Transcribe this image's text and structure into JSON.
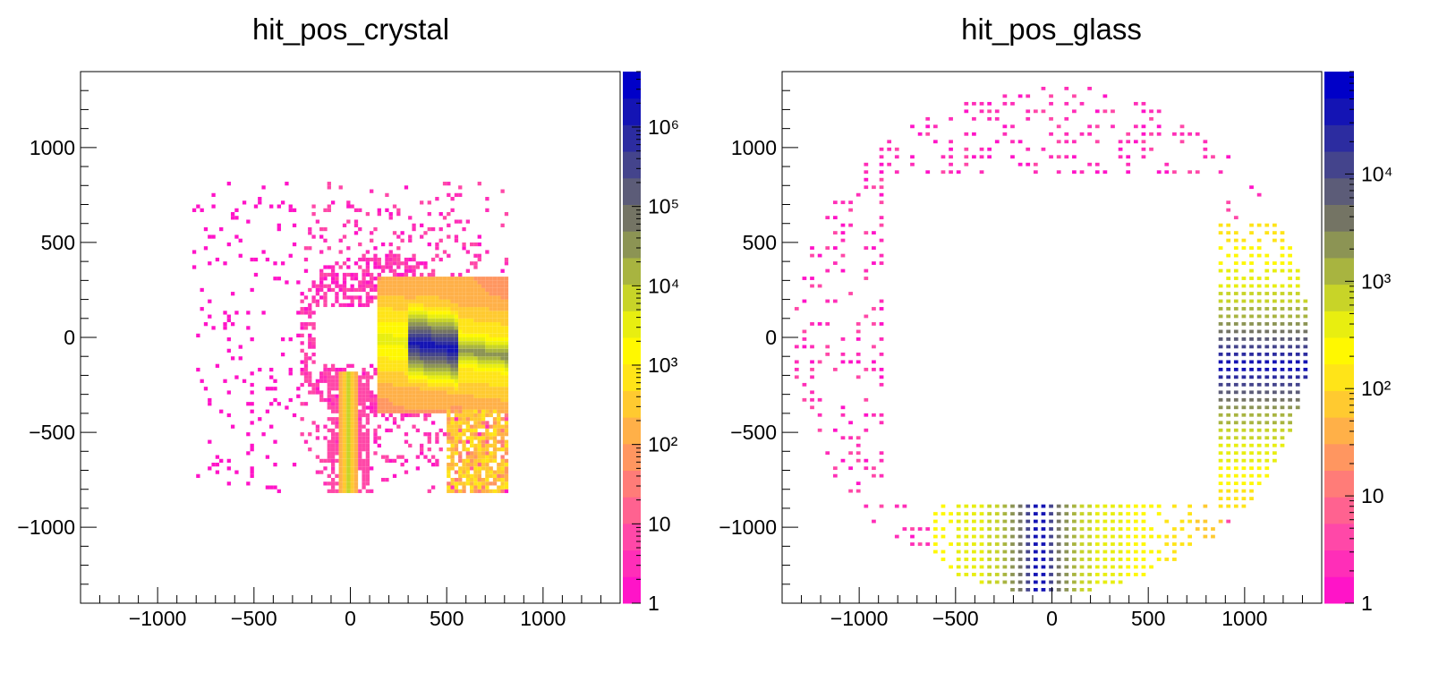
{
  "chart_data": [
    {
      "type": "heatmap",
      "title": "hit_pos_crystal",
      "xlabel": "",
      "ylabel": "",
      "xlim": [
        -1400,
        1400
      ],
      "ylim": [
        -1400,
        1400
      ],
      "x_ticks": [
        "−1000",
        "−500",
        "0",
        "500",
        "1000"
      ],
      "x_tick_values": [
        -1000,
        -500,
        0,
        500,
        1000
      ],
      "y_ticks": [
        "1000",
        "500",
        "0",
        "−500",
        "−1000"
      ],
      "y_tick_values": [
        1000,
        500,
        0,
        -500,
        -1000
      ],
      "log_z": true,
      "zlim": [
        1,
        5000000
      ],
      "z_ticks": [
        "1",
        "10",
        "10²",
        "10³",
        "10⁴",
        "10⁵",
        "10⁶"
      ],
      "z_tick_values": [
        1,
        10,
        100,
        1000,
        10000,
        100000,
        1000000
      ],
      "data_extent": {
        "x": [
          -820,
          820
        ],
        "y": [
          -820,
          820
        ]
      },
      "features": [
        {
          "kind": "empty_square",
          "x": [
            -180,
            140
          ],
          "y": [
            -140,
            160
          ]
        },
        {
          "kind": "vertical_band",
          "x_center": -10,
          "y": [
            -820,
            -180
          ],
          "peak_z": 10000
        },
        {
          "kind": "diagonal_streak",
          "from": [
            320,
            -30
          ],
          "to": [
            820,
            -100
          ],
          "peak_z": 3000000
        },
        {
          "kind": "corner_cluster",
          "x": [
            500,
            820
          ],
          "y": [
            -820,
            -400
          ],
          "peak_z": 1000
        },
        {
          "kind": "sparse_scatter",
          "x": [
            -820,
            820
          ],
          "y": [
            -820,
            820
          ],
          "z": 1
        }
      ]
    },
    {
      "type": "heatmap",
      "title": "hit_pos_glass",
      "xlabel": "",
      "ylabel": "",
      "xlim": [
        -1400,
        1400
      ],
      "ylim": [
        -1400,
        1400
      ],
      "x_ticks": [
        "−1000",
        "−500",
        "0",
        "500",
        "1000"
      ],
      "x_tick_values": [
        -1000,
        -500,
        0,
        500,
        1000
      ],
      "y_ticks": [
        "1000",
        "500",
        "0",
        "−500",
        "−1000"
      ],
      "y_tick_values": [
        1000,
        500,
        0,
        -500,
        -1000
      ],
      "log_z": true,
      "zlim": [
        1,
        90000
      ],
      "z_ticks": [
        "1",
        "10",
        "10²",
        "10³",
        "10⁴"
      ],
      "z_tick_values": [
        1,
        10,
        100,
        1000,
        10000
      ],
      "data_extent": {
        "x": [
          -1330,
          1330
        ],
        "y": [
          -1330,
          1330
        ]
      },
      "features": [
        {
          "kind": "ring_frame",
          "inner": [
            -860,
            860
          ],
          "outer_radius": 1330
        },
        {
          "kind": "right_band",
          "x": [
            870,
            1290
          ],
          "y": [
            -900,
            600
          ],
          "peak_z": 50000,
          "peak_y": [
            -200,
            -80
          ]
        },
        {
          "kind": "bottom_band",
          "x": [
            -600,
            900
          ],
          "y": [
            -1330,
            -870
          ],
          "peak_z": 50000,
          "peak_x": [
            -100,
            -20
          ]
        },
        {
          "kind": "sparse_scatter",
          "region": "top_and_left",
          "z": 1
        }
      ]
    }
  ],
  "palette": [
    "#ff14c8",
    "#ff2eb8",
    "#ff48a8",
    "#ff6290",
    "#ff7c78",
    "#ff9660",
    "#ffb048",
    "#ffca30",
    "#ffe418",
    "#fff800",
    "#e8ee10",
    "#c8d428",
    "#a8b440",
    "#8c9454",
    "#747464",
    "#5c5c78",
    "#44448c",
    "#2c2ca0",
    "#1414b4",
    "#0000c8"
  ]
}
